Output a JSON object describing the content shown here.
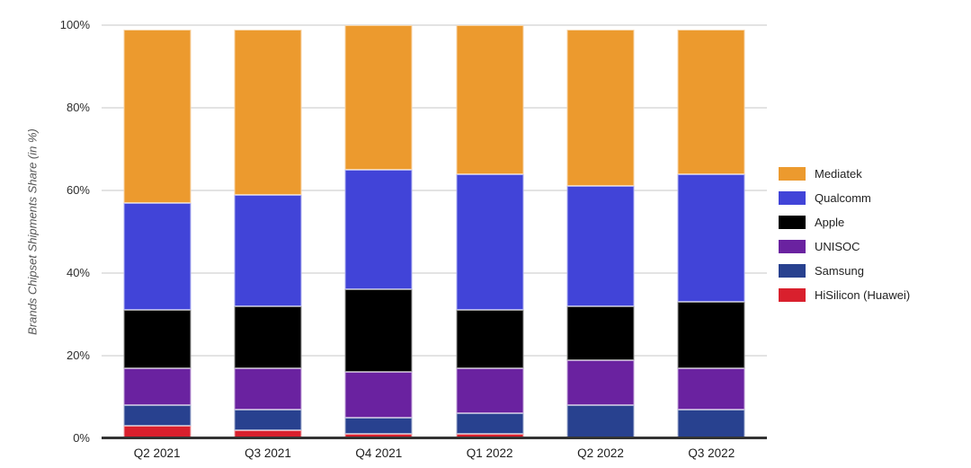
{
  "y_axis": {
    "title": "Brands Chipset Shipments Share (in %)",
    "ticks": [
      "0%",
      "20%",
      "40%",
      "60%",
      "80%",
      "100%"
    ]
  },
  "chart_data": {
    "type": "bar",
    "stacked": true,
    "title": "",
    "xlabel": "",
    "ylabel": "Brands Chipset Shipments Share (in %)",
    "ylim": [
      0,
      100
    ],
    "y_tick_step": 20,
    "grid": true,
    "legend_position": "right",
    "categories": [
      "Q2 2021",
      "Q3 2021",
      "Q4 2021",
      "Q1 2022",
      "Q2 2022",
      "Q3 2022"
    ],
    "series": [
      {
        "name": "HiSilicon (Huawei)",
        "color": "#d9202d",
        "values": [
          3,
          2,
          1,
          1,
          0,
          0
        ]
      },
      {
        "name": "Samsung",
        "color": "#28418f",
        "values": [
          5,
          5,
          4,
          5,
          8,
          7
        ]
      },
      {
        "name": "UNISOC",
        "color": "#6a22a0",
        "values": [
          9,
          10,
          11,
          11,
          11,
          10
        ]
      },
      {
        "name": "Apple",
        "color": "#000000",
        "values": [
          14,
          15,
          20,
          14,
          13,
          16
        ]
      },
      {
        "name": "Qualcomm",
        "color": "#4144d8",
        "values": [
          26,
          27,
          29,
          33,
          29,
          31
        ]
      },
      {
        "name": "Mediatek",
        "color": "#ec9a2e",
        "values": [
          42,
          40,
          35,
          36,
          38,
          35
        ]
      }
    ],
    "bar_totals": [
      99,
      99,
      100,
      100,
      99,
      99
    ],
    "legend_order": [
      "Mediatek",
      "Qualcomm",
      "Apple",
      "UNISOC",
      "Samsung",
      "HiSilicon (Huawei)"
    ]
  },
  "colors": {
    "gridline": "#e3e3e3",
    "axis_line": "#333333",
    "background": "#ffffff"
  }
}
